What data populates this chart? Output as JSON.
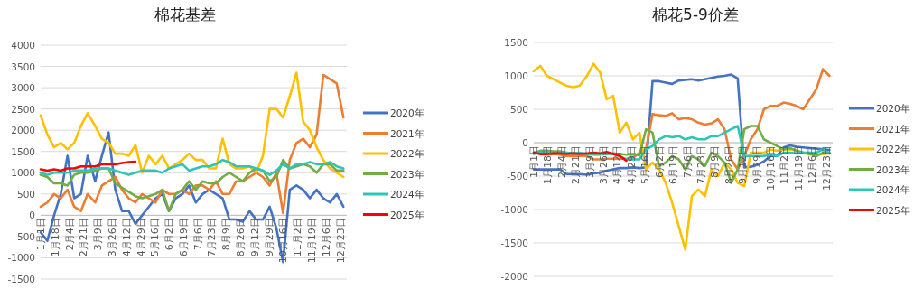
{
  "chart_data": [
    {
      "type": "line",
      "title": "棉花基差",
      "grid": "y",
      "legend": "right",
      "x": [
        "--01-01",
        "--01-09",
        "--01-17",
        "--01-25",
        "--02-02",
        "--02-10",
        "--02-18",
        "--02-26",
        "--03-06",
        "--03-14",
        "--03-22",
        "--03-30",
        "--04-07",
        "--04-15",
        "--04-23",
        "--05-01",
        "--05-09",
        "--05-17",
        "--05-25",
        "--06-02",
        "--06-10",
        "--06-18",
        "--06-26",
        "--07-04",
        "--07-12",
        "--07-20",
        "--07-28",
        "--08-05",
        "--08-13",
        "--08-21",
        "--08-29",
        "--09-06",
        "--09-14",
        "--09-22",
        "--09-30",
        "--10-08",
        "--10-16",
        "--10-24",
        "--11-01",
        "--11-09",
        "--11-17",
        "--11-25",
        "--12-03",
        "--12-11",
        "--12-19",
        "--12-27"
      ],
      "xlim": [
        "--01-01",
        "--12-31"
      ],
      "xticks": [
        {
          "value": "--01-01",
          "label": "1月1日"
        },
        {
          "value": "--01-18",
          "label": "1月18日"
        },
        {
          "value": "--02-04",
          "label": "2月4日"
        },
        {
          "value": "--02-21",
          "label": "2月21日"
        },
        {
          "value": "--03-09",
          "label": "3月9日"
        },
        {
          "value": "--03-26",
          "label": "3月26日"
        },
        {
          "value": "--04-12",
          "label": "4月12日"
        },
        {
          "value": "--04-29",
          "label": "4月29日"
        },
        {
          "value": "--05-16",
          "label": "5月16日"
        },
        {
          "value": "--06-02",
          "label": "6月2日"
        },
        {
          "value": "--06-19",
          "label": "6月19日"
        },
        {
          "value": "--07-06",
          "label": "7月6日"
        },
        {
          "value": "--07-23",
          "label": "7月23日"
        },
        {
          "value": "--08-09",
          "label": "8月9日"
        },
        {
          "value": "--08-26",
          "label": "8月26日"
        },
        {
          "value": "--09-12",
          "label": "9月12日"
        },
        {
          "value": "--09-29",
          "label": "9月29日"
        },
        {
          "value": "--10-16",
          "label": "10月16日"
        },
        {
          "value": "--11-02",
          "label": "11月2日"
        },
        {
          "value": "--11-19",
          "label": "11月19日"
        },
        {
          "value": "--12-06",
          "label": "12月6日"
        },
        {
          "value": "--12-23",
          "label": "12月23日"
        }
      ],
      "ylim": [
        -1500,
        4000
      ],
      "yticks": [
        -1500,
        -1000,
        -500,
        0,
        500,
        1000,
        1500,
        2000,
        2500,
        3000,
        3500,
        4000
      ],
      "series": [
        {
          "name": "2020年",
          "color": "#4472c4",
          "values": [
            -400,
            -600,
            0,
            500,
            1400,
            400,
            500,
            1400,
            800,
            1400,
            1950,
            600,
            100,
            100,
            -200,
            0,
            200,
            400,
            500,
            100,
            400,
            500,
            700,
            300,
            500,
            600,
            500,
            400,
            -100,
            -100,
            -150,
            100,
            -100,
            -100,
            200,
            -300,
            -1100,
            600,
            700,
            600,
            400,
            600,
            400,
            300,
            500,
            200
          ]
        },
        {
          "name": "2021年",
          "color": "#ed7d31",
          "values": [
            200,
            300,
            500,
            400,
            600,
            200,
            100,
            500,
            300,
            700,
            800,
            900,
            600,
            400,
            300,
            500,
            400,
            300,
            600,
            500,
            500,
            600,
            500,
            700,
            700,
            600,
            800,
            500,
            500,
            800,
            800,
            900,
            1000,
            900,
            700,
            1000,
            50,
            1300,
            1700,
            1800,
            1600,
            1900,
            3300,
            3200,
            3100,
            2300
          ]
        },
        {
          "name": "2022年",
          "color": "#ffc000",
          "values": [
            2350,
            1900,
            1600,
            1700,
            1550,
            1700,
            2100,
            2400,
            2100,
            1800,
            1700,
            1450,
            1450,
            1400,
            1650,
            1000,
            1400,
            1200,
            1400,
            1100,
            1200,
            1300,
            1450,
            1300,
            1300,
            1100,
            1100,
            1800,
            1200,
            1100,
            1100,
            1150,
            1000,
            1400,
            2500,
            2500,
            2300,
            2800,
            3350,
            2200,
            2000,
            1600,
            1300,
            1100,
            1000,
            900
          ]
        },
        {
          "name": "2023年",
          "color": "#70ad47",
          "values": [
            950,
            900,
            750,
            750,
            700,
            950,
            1000,
            1000,
            1050,
            1100,
            1100,
            750,
            650,
            550,
            450,
            400,
            450,
            500,
            600,
            100,
            500,
            600,
            800,
            600,
            800,
            750,
            750,
            900,
            1000,
            900,
            800,
            1000,
            1100,
            1050,
            800,
            900,
            1300,
            1100,
            1150,
            1200,
            1150,
            1000,
            1200,
            1200,
            1050,
            1050
          ]
        },
        {
          "name": "2024年",
          "color": "#2ec4b6",
          "values": [
            1000,
            950,
            1000,
            1000,
            1000,
            1050,
            1050,
            1050,
            1100,
            1100,
            1100,
            1050,
            1000,
            950,
            1000,
            1050,
            1050,
            1050,
            1000,
            1100,
            1150,
            1200,
            1050,
            1100,
            1150,
            1150,
            1200,
            1300,
            1250,
            1150,
            1150,
            1150,
            1100,
            1050,
            950,
            1050,
            1200,
            1100,
            1200,
            1200,
            1250,
            1200,
            1200,
            1250,
            1150,
            1100
          ]
        },
        {
          "name": "2025年",
          "color": "#ff0000",
          "values": [
            1080,
            1050,
            1080,
            1050,
            1100,
            1100,
            1150,
            1150,
            1150,
            1200,
            1200,
            1200,
            1230,
            1250,
            1260,
            null,
            null,
            null,
            null,
            null,
            null,
            null,
            null,
            null,
            null,
            null,
            null,
            null,
            null,
            null,
            null,
            null,
            null,
            null,
            null,
            null,
            null,
            null,
            null,
            null,
            null,
            null,
            null,
            null,
            null,
            null
          ]
        }
      ]
    },
    {
      "type": "line",
      "title": "棉花5-9价差",
      "grid": "y",
      "legend": "right",
      "x": [
        "--01-01",
        "--01-09",
        "--01-17",
        "--01-25",
        "--02-02",
        "--02-10",
        "--02-18",
        "--02-26",
        "--03-06",
        "--03-14",
        "--03-22",
        "--03-30",
        "--04-07",
        "--04-15",
        "--04-23",
        "--05-01",
        "--05-09",
        "--05-17",
        "--05-25",
        "--06-02",
        "--06-10",
        "--06-18",
        "--06-26",
        "--07-04",
        "--07-12",
        "--07-20",
        "--07-28",
        "--08-05",
        "--08-13",
        "--08-21",
        "--08-29",
        "--09-06",
        "--09-14",
        "--09-22",
        "--09-30",
        "--10-08",
        "--10-16",
        "--10-24",
        "--11-01",
        "--11-09",
        "--11-17",
        "--11-25",
        "--12-03",
        "--12-11",
        "--12-19",
        "--12-27"
      ],
      "xlim": [
        "--01-01",
        "--12-31"
      ],
      "xticks": [
        {
          "value": "--01-01",
          "label": "1月1日"
        },
        {
          "value": "--01-18",
          "label": "1月18日"
        },
        {
          "value": "--02-04",
          "label": "2月4日"
        },
        {
          "value": "--02-21",
          "label": "2月21日"
        },
        {
          "value": "--03-09",
          "label": "3月9日"
        },
        {
          "value": "--03-26",
          "label": "3月26日"
        },
        {
          "value": "--04-12",
          "label": "4月12日"
        },
        {
          "value": "--04-29",
          "label": "4月29日"
        },
        {
          "value": "--05-16",
          "label": "5月16日"
        },
        {
          "value": "--06-02",
          "label": "6月2日"
        },
        {
          "value": "--06-19",
          "label": "6月19日"
        },
        {
          "value": "--07-06",
          "label": "7月6日"
        },
        {
          "value": "--07-23",
          "label": "7月23日"
        },
        {
          "value": "--08-09",
          "label": "8月9日"
        },
        {
          "value": "--08-26",
          "label": "8月26日"
        },
        {
          "value": "--09-12",
          "label": "9月12日"
        },
        {
          "value": "--09-29",
          "label": "9月29日"
        },
        {
          "value": "--10-16",
          "label": "10月16日"
        },
        {
          "value": "--11-02",
          "label": "11月2日"
        },
        {
          "value": "--11-19",
          "label": "11月19日"
        },
        {
          "value": "--12-06",
          "label": "12月6日"
        },
        {
          "value": "--12-23",
          "label": "12月23日"
        }
      ],
      "ylim": [
        -2000,
        1500
      ],
      "yticks": [
        -2000,
        -1500,
        -1000,
        -500,
        0,
        500,
        1000,
        1500
      ],
      "series": [
        {
          "name": "2020年",
          "color": "#4472c4",
          "values": [
            -400,
            -400,
            -400,
            -400,
            -400,
            -470,
            -470,
            -470,
            -480,
            -460,
            -450,
            -420,
            -400,
            -380,
            -380,
            -370,
            -380,
            -370,
            920,
            920,
            900,
            880,
            930,
            940,
            950,
            930,
            950,
            970,
            990,
            1000,
            1020,
            960,
            -370,
            -360,
            -330,
            -280,
            -200,
            -200,
            -70,
            -40,
            -60,
            -70,
            -80,
            -90,
            -100,
            -110
          ]
        },
        {
          "name": "2021年",
          "color": "#ed7d31",
          "values": [
            -150,
            -170,
            -180,
            -170,
            -180,
            -200,
            -200,
            -200,
            -200,
            -250,
            -250,
            -240,
            -240,
            -240,
            -240,
            -230,
            -150,
            -100,
            430,
            410,
            400,
            440,
            350,
            370,
            350,
            300,
            270,
            290,
            350,
            200,
            -250,
            -400,
            -200,
            50,
            200,
            500,
            550,
            550,
            600,
            580,
            550,
            500,
            650,
            800,
            1100,
            1000
          ]
        },
        {
          "name": "2022年",
          "color": "#ffc000",
          "values": [
            1070,
            1150,
            1000,
            950,
            900,
            850,
            830,
            850,
            1000,
            1180,
            1050,
            650,
            700,
            150,
            300,
            50,
            150,
            -400,
            -300,
            -400,
            -600,
            -900,
            -1250,
            -1600,
            -800,
            -700,
            -800,
            -400,
            -500,
            -300,
            -400,
            -600,
            -650,
            -150,
            -150,
            -150,
            -100,
            -120,
            -100,
            -100,
            -120,
            -150,
            -180,
            -180,
            -170,
            -160
          ]
        },
        {
          "name": "2023年",
          "color": "#70ad47",
          "values": [
            -150,
            -120,
            -120,
            -130,
            -130,
            -150,
            -160,
            -160,
            -170,
            -180,
            -180,
            -170,
            -160,
            -170,
            -180,
            -180,
            -190,
            200,
            150,
            -350,
            -300,
            -200,
            -250,
            -400,
            -200,
            -250,
            -350,
            -150,
            -200,
            -300,
            -600,
            -400,
            200,
            250,
            250,
            50,
            0,
            -50,
            -100,
            -80,
            -120,
            -150,
            -170,
            -200,
            -150,
            -150
          ]
        },
        {
          "name": "2024年",
          "color": "#2ec4b6",
          "values": [
            -170,
            -150,
            -150,
            -160,
            -150,
            -150,
            -160,
            -150,
            -170,
            -160,
            -170,
            -160,
            -170,
            -200,
            -250,
            -250,
            -250,
            -100,
            -50,
            50,
            100,
            80,
            100,
            50,
            80,
            50,
            50,
            100,
            100,
            150,
            200,
            250,
            -200,
            -200,
            -200,
            -200,
            -180,
            -200,
            -150,
            -150,
            -160,
            -150,
            -150,
            -150,
            -100,
            -160
          ]
        },
        {
          "name": "2025年",
          "color": "#ff0000",
          "values": [
            -150,
            -170,
            -170,
            -160,
            -160,
            -170,
            -160,
            -170,
            -160,
            -150,
            -160,
            -140,
            -170,
            -200,
            -270,
            null,
            null,
            null,
            null,
            null,
            null,
            null,
            null,
            null,
            null,
            null,
            null,
            null,
            null,
            null,
            null,
            null,
            null,
            null,
            null,
            null,
            null,
            null,
            null,
            null,
            null,
            null,
            null,
            null,
            null,
            null
          ]
        }
      ]
    }
  ]
}
